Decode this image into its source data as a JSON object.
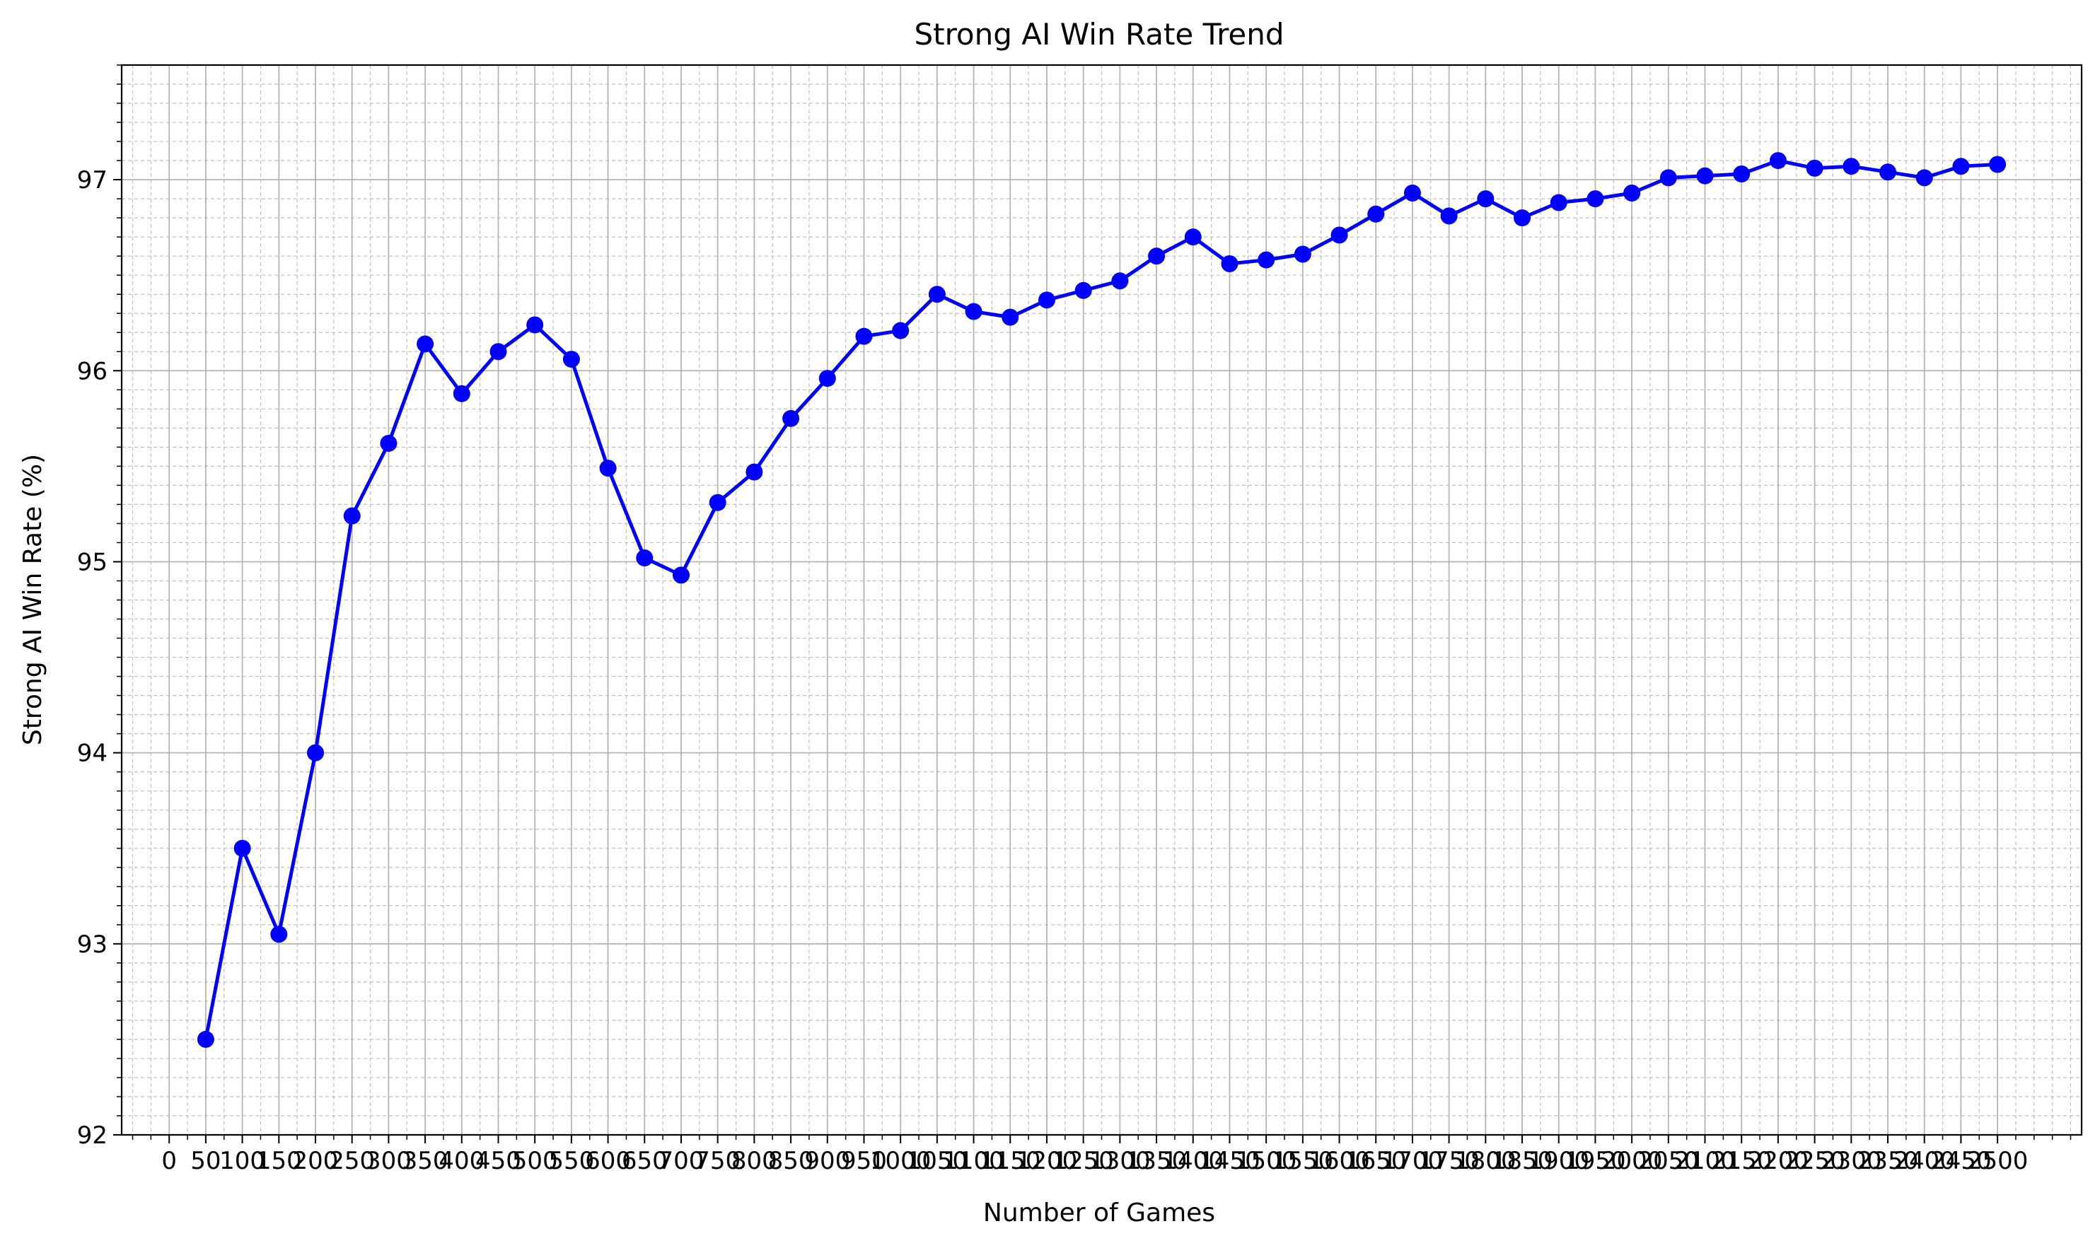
{
  "chart_data": {
    "type": "line",
    "title": "Strong AI Win Rate Trend",
    "xlabel": "Number of Games",
    "ylabel": "Strong AI Win Rate (%)",
    "xlim": [
      -65,
      2615
    ],
    "ylim": [
      92,
      97.6
    ],
    "x_ticks": [
      0,
      50,
      100,
      150,
      200,
      250,
      300,
      350,
      400,
      450,
      500,
      550,
      600,
      650,
      700,
      750,
      800,
      850,
      900,
      950,
      1000,
      1050,
      1100,
      1150,
      1200,
      1250,
      1300,
      1350,
      1400,
      1450,
      1500,
      1550,
      1600,
      1650,
      1700,
      1750,
      1800,
      1850,
      1900,
      1950,
      2000,
      2050,
      2100,
      2150,
      2200,
      2250,
      2300,
      2350,
      2400,
      2450,
      2500
    ],
    "y_ticks": [
      92,
      93,
      94,
      95,
      96,
      97
    ],
    "grid": true,
    "legend": "none",
    "colors": {
      "line": "#0000ff",
      "marker": "#0000ff",
      "grid": "#b0b0b0"
    },
    "series": [
      {
        "x": [
          50,
          100,
          150,
          200,
          250,
          300,
          350,
          400,
          450,
          500,
          550,
          600,
          650,
          700,
          750,
          800,
          850,
          900,
          950,
          1000,
          1050,
          1100,
          1150,
          1200,
          1250,
          1300,
          1350,
          1400,
          1450,
          1500,
          1550,
          1600,
          1650,
          1700,
          1750,
          1800,
          1850,
          1900,
          1950,
          2000,
          2050,
          2100,
          2150,
          2200,
          2250,
          2300,
          2350,
          2400,
          2450,
          2500
        ],
        "values": [
          92.5,
          93.5,
          93.05,
          94.0,
          95.24,
          95.62,
          96.14,
          95.88,
          96.1,
          96.24,
          96.06,
          95.49,
          95.02,
          94.93,
          95.31,
          95.47,
          95.75,
          95.96,
          96.18,
          96.21,
          96.4,
          96.31,
          96.28,
          96.37,
          96.42,
          96.47,
          96.6,
          96.7,
          96.56,
          96.58,
          96.61,
          96.71,
          96.82,
          96.93,
          96.81,
          96.9,
          96.8,
          96.88,
          96.9,
          96.93,
          97.01,
          97.02,
          97.03,
          97.1,
          97.06,
          97.07,
          97.04,
          97.01,
          97.07,
          97.08
        ]
      }
    ]
  }
}
